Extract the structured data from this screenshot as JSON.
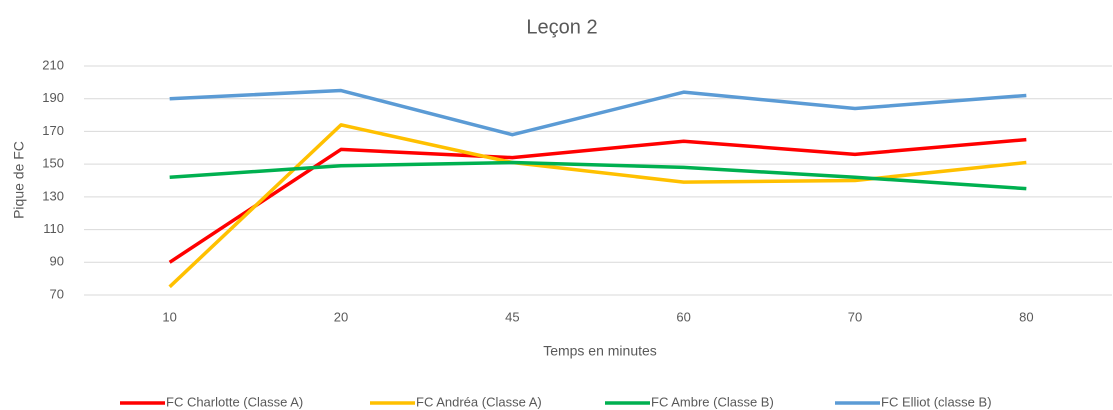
{
  "chart_data": {
    "type": "line",
    "title": "Leçon 2",
    "x_label": "Temps en minutes",
    "y_label": "Pique de FC",
    "categories": [
      "10",
      "20",
      "45",
      "60",
      "70",
      "80"
    ],
    "series": [
      {
        "name": "FC Charlotte (Classe A)",
        "color": "#ff0000",
        "values": [
          90,
          159,
          154,
          164,
          156,
          165
        ]
      },
      {
        "name": "FC Andréa (Classe A)",
        "color": "#ffc000",
        "values": [
          75,
          174,
          151,
          139,
          140,
          151
        ]
      },
      {
        "name": "FC Ambre (Classe B)",
        "color": "#00b050",
        "values": [
          142,
          149,
          151,
          148,
          142,
          135
        ]
      },
      {
        "name": "FC Elliot (classe B)",
        "color": "#5b9bd5",
        "values": [
          190,
          195,
          168,
          194,
          184,
          192
        ]
      }
    ],
    "ylim": [
      70,
      210
    ],
    "yticks": [
      70,
      90,
      110,
      130,
      150,
      170,
      190,
      210
    ],
    "grid": true,
    "legend": "bottom"
  }
}
